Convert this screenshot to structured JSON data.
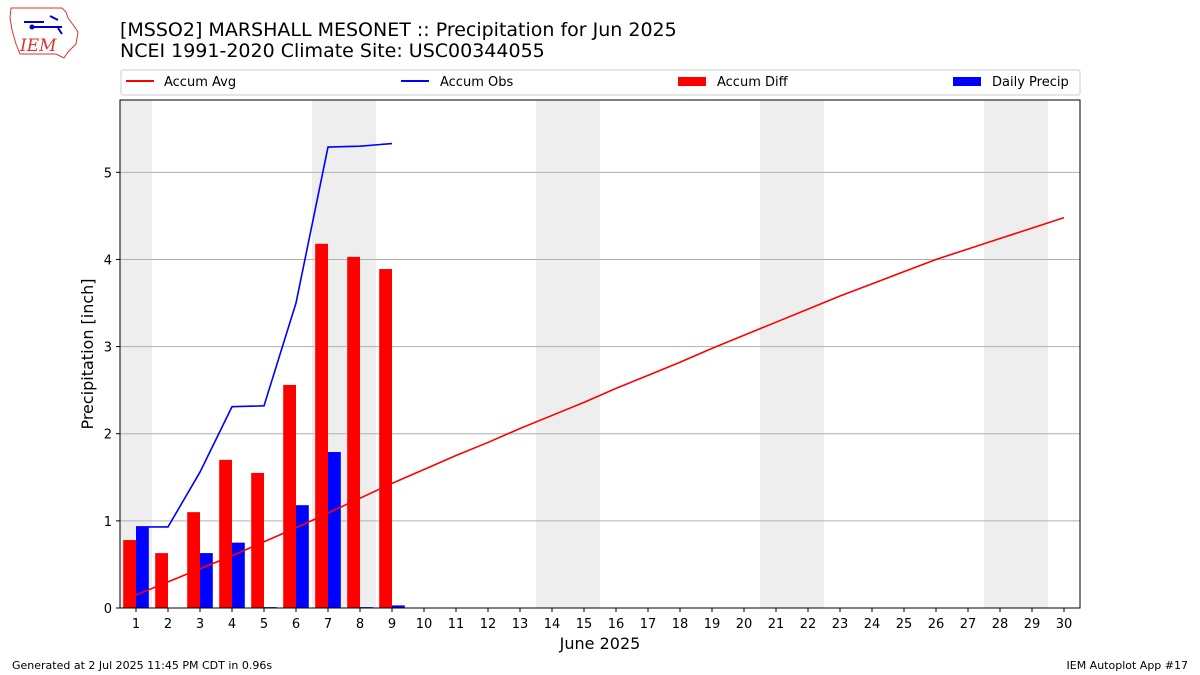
{
  "logo": {
    "text": "IEM"
  },
  "title_lines": [
    "[MSSO2] MARSHALL MESONET :: Precipitation for Jun 2025",
    "NCEI 1991-2020 Climate Site: USC00344055"
  ],
  "footer": {
    "left": "Generated at 2 Jul 2025 11:45 PM CDT in 0.96s",
    "right": "IEM Autoplot App #17"
  },
  "colors": {
    "accum_avg": "#ff0000",
    "accum_obs": "#0000ff",
    "accum_diff": "#ff0000",
    "daily_precip": "#0000ff",
    "weekend_shade": "#eeeeee",
    "grid": "#b0b0b0"
  },
  "chart_data": {
    "type": "bar",
    "title": "[MSSO2] MARSHALL MESONET :: Precipitation for Jun 2025",
    "subtitle": "NCEI 1991-2020 Climate Site: USC00344055",
    "xlabel": "June 2025",
    "ylabel": "Precipitation [inch]",
    "xlim": [
      0.5,
      30.5
    ],
    "ylim": [
      0,
      5.83
    ],
    "yticks": [
      0,
      1,
      2,
      3,
      4,
      5
    ],
    "xticks": [
      1,
      2,
      3,
      4,
      5,
      6,
      7,
      8,
      9,
      10,
      11,
      12,
      13,
      14,
      15,
      16,
      17,
      18,
      19,
      20,
      21,
      22,
      23,
      24,
      25,
      26,
      27,
      28,
      29,
      30
    ],
    "grid": "y",
    "legend_placement": "top",
    "weekend_days": [
      1,
      7,
      8,
      14,
      15,
      21,
      22,
      28,
      29
    ],
    "series": [
      {
        "name": "Accum Avg",
        "kind": "line",
        "x": [
          1,
          2,
          3,
          4,
          5,
          6,
          7,
          8,
          9,
          10,
          11,
          12,
          13,
          14,
          15,
          16,
          17,
          18,
          19,
          20,
          21,
          22,
          23,
          24,
          25,
          26,
          27,
          28,
          29,
          30
        ],
        "values": [
          0.15,
          0.3,
          0.45,
          0.6,
          0.76,
          0.92,
          1.09,
          1.26,
          1.43,
          1.59,
          1.75,
          1.9,
          2.06,
          2.21,
          2.36,
          2.52,
          2.67,
          2.82,
          2.98,
          3.13,
          3.28,
          3.43,
          3.58,
          3.72,
          3.86,
          4.0,
          4.12,
          4.24,
          4.36,
          4.48
        ]
      },
      {
        "name": "Accum Obs",
        "kind": "line",
        "x": [
          1,
          2,
          3,
          4,
          5,
          6,
          7,
          8,
          9
        ],
        "values": [
          0.93,
          0.93,
          1.56,
          2.31,
          2.32,
          3.5,
          5.29,
          5.3,
          5.33
        ]
      },
      {
        "name": "Accum Diff",
        "kind": "bar",
        "x": [
          1,
          2,
          3,
          4,
          5,
          6,
          7,
          8,
          9
        ],
        "values": [
          0.78,
          0.63,
          1.1,
          1.7,
          1.55,
          2.56,
          4.18,
          4.03,
          3.89
        ]
      },
      {
        "name": "Daily Precip",
        "kind": "bar",
        "x": [
          1,
          2,
          3,
          4,
          5,
          6,
          7,
          8,
          9
        ],
        "values": [
          0.93,
          0.0,
          0.63,
          0.75,
          0.01,
          1.18,
          1.79,
          0.01,
          0.03
        ]
      }
    ]
  }
}
